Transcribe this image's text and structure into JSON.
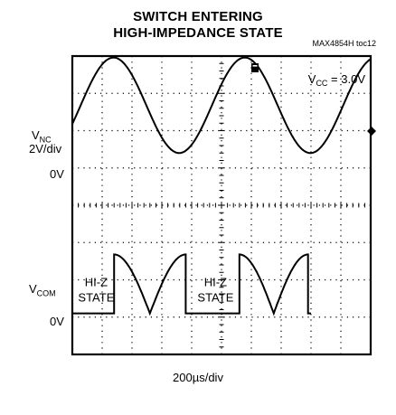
{
  "title_lines": [
    "SWITCH ENTERING",
    "HIGH-IMPEDANCE STATE"
  ],
  "figure_code": "MAX4854H toc12",
  "condition": {
    "prefix": "V",
    "sub": "CC",
    "suffix": " = 3.0V"
  },
  "y_labels": {
    "vnc": {
      "prefix": "V",
      "sub": "NC"
    },
    "vnc_scale": "2V/div",
    "vnc_zero": "0V",
    "vcom": {
      "prefix": "V",
      "sub": "COM"
    },
    "vcom_zero": "0V"
  },
  "hiz_labels": [
    {
      "line1": "HI-Z",
      "line2": "STATE"
    },
    {
      "line1": "HI-Z",
      "line2": "STATE"
    }
  ],
  "x_label": "200µs/div",
  "chart_data": {
    "type": "line",
    "title": "SWITCH ENTERING HIGH-IMPEDANCE STATE",
    "xlabel": "200µs/div",
    "x_divisions": 10,
    "y_divisions": 8,
    "grid": true,
    "time_per_div_us": 200,
    "series": [
      {
        "name": "V_NC",
        "volts_per_div": 2,
        "zero_line_div_from_top": 2.6,
        "waveform": "sine",
        "amplitude_div": 1.28,
        "offset_div_from_zero": 1.28,
        "period_div": 4.4,
        "phase_start_div": 0.28
      },
      {
        "name": "V_COM",
        "zero_line_div_from_top": 6.9,
        "segments": [
          {
            "type": "flat",
            "from_div": 0.0,
            "to_div": 1.4
          },
          {
            "type": "rectified_sine",
            "from_div": 1.4,
            "to_div": 3.8,
            "peak_div": 1.58
          },
          {
            "type": "flat",
            "from_div": 3.8,
            "to_div": 5.6
          },
          {
            "type": "rectified_sine",
            "from_div": 5.6,
            "to_div": 7.9,
            "peak_div": 1.58
          },
          {
            "type": "flat",
            "from_div": 7.9,
            "to_div": 8.0
          }
        ]
      }
    ]
  }
}
